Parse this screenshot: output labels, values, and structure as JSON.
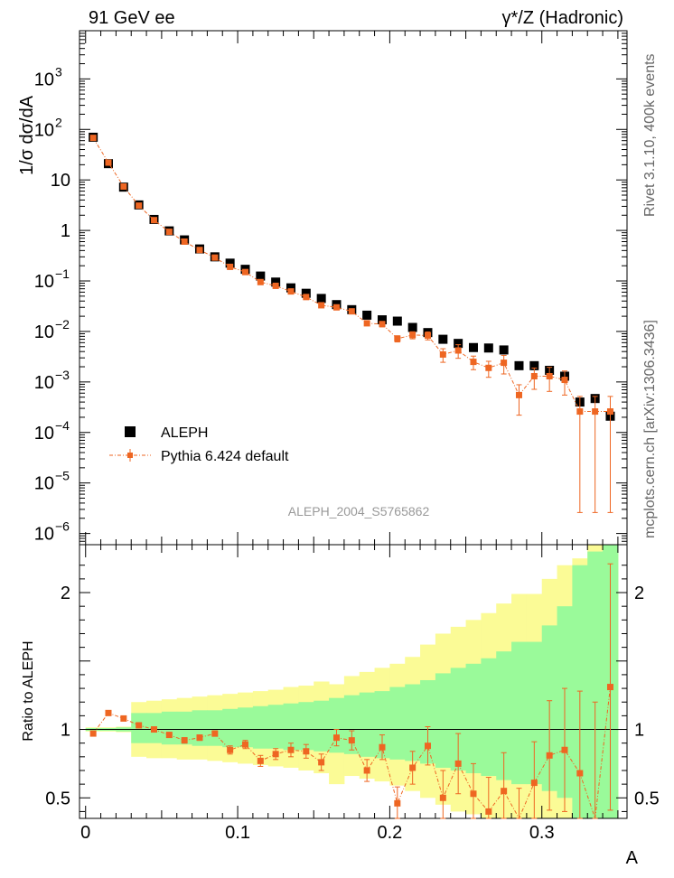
{
  "header": {
    "left_title": "91 GeV ee",
    "right_title": "γ*/Z (Hadronic)"
  },
  "side_labels": {
    "rivet": "Rivet 3.1.10,  400k events",
    "mcplots": "mcplots.cern.ch [arXiv:1306.3436]"
  },
  "chart_data": [
    {
      "type": "scatter",
      "panel": "main",
      "ylabel": "1/σ  dσ/dA",
      "yscale": "log",
      "ylim": [
        6e-07,
        9000
      ],
      "xlim": [
        -0.004,
        0.356
      ],
      "y_ticks": [
        {
          "base": "10",
          "exp": "3",
          "value": 1000
        },
        {
          "base": "10",
          "exp": "2",
          "value": 100
        },
        {
          "base": "10",
          "exp": "",
          "value": 10
        },
        {
          "base": "1",
          "exp": "",
          "value": 1
        },
        {
          "base": "10",
          "exp": "−1",
          "value": 0.1
        },
        {
          "base": "10",
          "exp": "−2",
          "value": 0.01
        },
        {
          "base": "10",
          "exp": "−3",
          "value": 0.001
        },
        {
          "base": "10",
          "exp": "−4",
          "value": 0.0001
        },
        {
          "base": "10",
          "exp": "−5",
          "value": 1e-05
        },
        {
          "base": "10",
          "exp": "−6",
          "value": 1e-06
        }
      ],
      "annotation": "ALEPH_2004_S5765862",
      "legend": {
        "placement": "bottom-left"
      },
      "x": [
        0.005,
        0.015,
        0.025,
        0.035,
        0.045,
        0.055,
        0.065,
        0.075,
        0.085,
        0.095,
        0.105,
        0.115,
        0.125,
        0.135,
        0.145,
        0.155,
        0.165,
        0.175,
        0.185,
        0.195,
        0.205,
        0.215,
        0.225,
        0.235,
        0.245,
        0.255,
        0.265,
        0.275,
        0.285,
        0.295,
        0.305,
        0.315,
        0.325,
        0.335,
        0.345
      ],
      "series": [
        {
          "name": "ALEPH",
          "color": "#000000",
          "values": [
            70,
            21,
            7.2,
            3.2,
            1.65,
            0.98,
            0.65,
            0.43,
            0.3,
            0.225,
            0.17,
            0.125,
            0.095,
            0.073,
            0.057,
            0.045,
            0.034,
            0.027,
            0.021,
            0.017,
            0.016,
            0.012,
            0.0095,
            0.007,
            0.0058,
            0.0048,
            0.0047,
            0.0043,
            0.0021,
            0.0021,
            0.0017,
            0.0013,
            0.0004,
            0.00047,
            0.00021
          ]
        },
        {
          "name": "Pythia 6.424 default",
          "color": "#ee6622",
          "values": [
            68,
            22,
            7.4,
            3.1,
            1.6,
            0.94,
            0.6,
            0.41,
            0.29,
            0.19,
            0.15,
            0.095,
            0.08,
            0.062,
            0.048,
            0.033,
            0.03,
            0.025,
            0.0145,
            0.014,
            0.0072,
            0.0085,
            0.0083,
            0.0035,
            0.0042,
            0.0025,
            0.0019,
            0.0024,
            0.00055,
            0.0013,
            0.0013,
            0.0011,
            0.00026,
            0.00026,
            0.00026
          ],
          "err_rel": [
            0.01,
            0.01,
            0.01,
            0.01,
            0.01,
            0.01,
            0.02,
            0.02,
            0.02,
            0.03,
            0.04,
            0.05,
            0.05,
            0.06,
            0.06,
            0.07,
            0.08,
            0.09,
            0.1,
            0.12,
            0.14,
            0.16,
            0.18,
            0.3,
            0.3,
            0.3,
            0.35,
            0.4,
            0.6,
            0.45,
            0.5,
            0.5,
            0.99,
            0.99,
            0.99
          ]
        }
      ]
    },
    {
      "type": "scatter",
      "panel": "ratio",
      "ylabel": "Ratio to ALEPH",
      "xlabel": "A",
      "ylim": [
        0.35,
        2.35
      ],
      "xlim": [
        -0.004,
        0.356
      ],
      "y_ticks": [
        0.5,
        1,
        2
      ],
      "y_tick_labels": [
        "0.5",
        "1",
        "2"
      ],
      "x_ticks": [
        0,
        0.1,
        0.2,
        0.3
      ],
      "x_tick_labels": [
        "0",
        "0.1",
        "0.2",
        "0.3"
      ],
      "x": [
        0.005,
        0.015,
        0.025,
        0.035,
        0.045,
        0.055,
        0.065,
        0.075,
        0.085,
        0.095,
        0.105,
        0.115,
        0.125,
        0.135,
        0.145,
        0.155,
        0.165,
        0.175,
        0.185,
        0.195,
        0.205,
        0.215,
        0.225,
        0.235,
        0.245,
        0.255,
        0.265,
        0.275,
        0.285,
        0.295,
        0.305,
        0.315,
        0.325,
        0.335,
        0.345
      ],
      "series": [
        {
          "name": "Pythia 6.424 default",
          "color": "#ee6622",
          "values": [
            0.97,
            1.12,
            1.08,
            1.03,
            1.0,
            0.96,
            0.92,
            0.94,
            0.97,
            0.85,
            0.89,
            0.77,
            0.82,
            0.85,
            0.84,
            0.76,
            0.94,
            0.92,
            0.7,
            0.87,
            0.46,
            0.72,
            0.88,
            0.5,
            0.75,
            0.53,
            0.4,
            0.55,
            0.27,
            0.61,
            0.81,
            0.85,
            0.68,
            0.3,
            1.31
          ],
          "err": [
            0.01,
            0.01,
            0.01,
            0.01,
            0.01,
            0.01,
            0.02,
            0.02,
            0.02,
            0.03,
            0.03,
            0.04,
            0.04,
            0.05,
            0.05,
            0.06,
            0.06,
            0.07,
            0.08,
            0.09,
            0.12,
            0.12,
            0.14,
            0.2,
            0.22,
            0.22,
            0.25,
            0.28,
            0.3,
            0.3,
            0.4,
            0.45,
            0.6,
            0.9,
            0.9
          ]
        }
      ],
      "band_inner": [
        [
          0.99,
          1.01
        ],
        [
          0.99,
          1.01
        ],
        [
          0.985,
          1.015
        ],
        [
          0.9,
          1.12
        ],
        [
          0.9,
          1.12
        ],
        [
          0.89,
          1.13
        ],
        [
          0.89,
          1.13
        ],
        [
          0.88,
          1.14
        ],
        [
          0.88,
          1.14
        ],
        [
          0.87,
          1.15
        ],
        [
          0.87,
          1.16
        ],
        [
          0.86,
          1.17
        ],
        [
          0.86,
          1.18
        ],
        [
          0.85,
          1.19
        ],
        [
          0.85,
          1.2
        ],
        [
          0.84,
          1.21
        ],
        [
          0.83,
          1.23
        ],
        [
          0.82,
          1.25
        ],
        [
          0.8,
          1.27
        ],
        [
          0.79,
          1.28
        ],
        [
          0.78,
          1.31
        ],
        [
          0.77,
          1.33
        ],
        [
          0.75,
          1.36
        ],
        [
          0.72,
          1.41
        ],
        [
          0.7,
          1.45
        ],
        [
          0.68,
          1.48
        ],
        [
          0.66,
          1.52
        ],
        [
          0.63,
          1.57
        ],
        [
          0.6,
          1.64
        ],
        [
          0.6,
          1.64
        ],
        [
          0.55,
          1.76
        ],
        [
          0.5,
          1.9
        ],
        [
          0.35,
          2.2
        ],
        [
          0.35,
          2.3
        ],
        [
          0.35,
          2.35
        ]
      ],
      "band_outer": [
        [
          0.985,
          1.015
        ],
        [
          0.985,
          1.015
        ],
        [
          0.98,
          1.02
        ],
        [
          0.8,
          1.2
        ],
        [
          0.79,
          1.21
        ],
        [
          0.79,
          1.22
        ],
        [
          0.78,
          1.23
        ],
        [
          0.78,
          1.24
        ],
        [
          0.77,
          1.25
        ],
        [
          0.76,
          1.26
        ],
        [
          0.75,
          1.27
        ],
        [
          0.74,
          1.28
        ],
        [
          0.73,
          1.29
        ],
        [
          0.72,
          1.31
        ],
        [
          0.7,
          1.32
        ],
        [
          0.68,
          1.35
        ],
        [
          0.6,
          1.33
        ],
        [
          0.66,
          1.39
        ],
        [
          0.64,
          1.42
        ],
        [
          0.62,
          1.45
        ],
        [
          0.59,
          1.48
        ],
        [
          0.55,
          1.53
        ],
        [
          0.5,
          1.62
        ],
        [
          0.45,
          1.7
        ],
        [
          0.4,
          1.75
        ],
        [
          0.38,
          1.8
        ],
        [
          0.35,
          1.85
        ],
        [
          0.35,
          1.92
        ],
        [
          0.35,
          1.99
        ],
        [
          0.35,
          1.99
        ],
        [
          0.35,
          2.1
        ],
        [
          0.35,
          2.2
        ],
        [
          0.35,
          2.25
        ],
        [
          0.35,
          2.35
        ],
        [
          0.35,
          2.35
        ]
      ],
      "band_colors": {
        "inner": "#9afa9a",
        "outer": "#fbfb96"
      }
    }
  ]
}
